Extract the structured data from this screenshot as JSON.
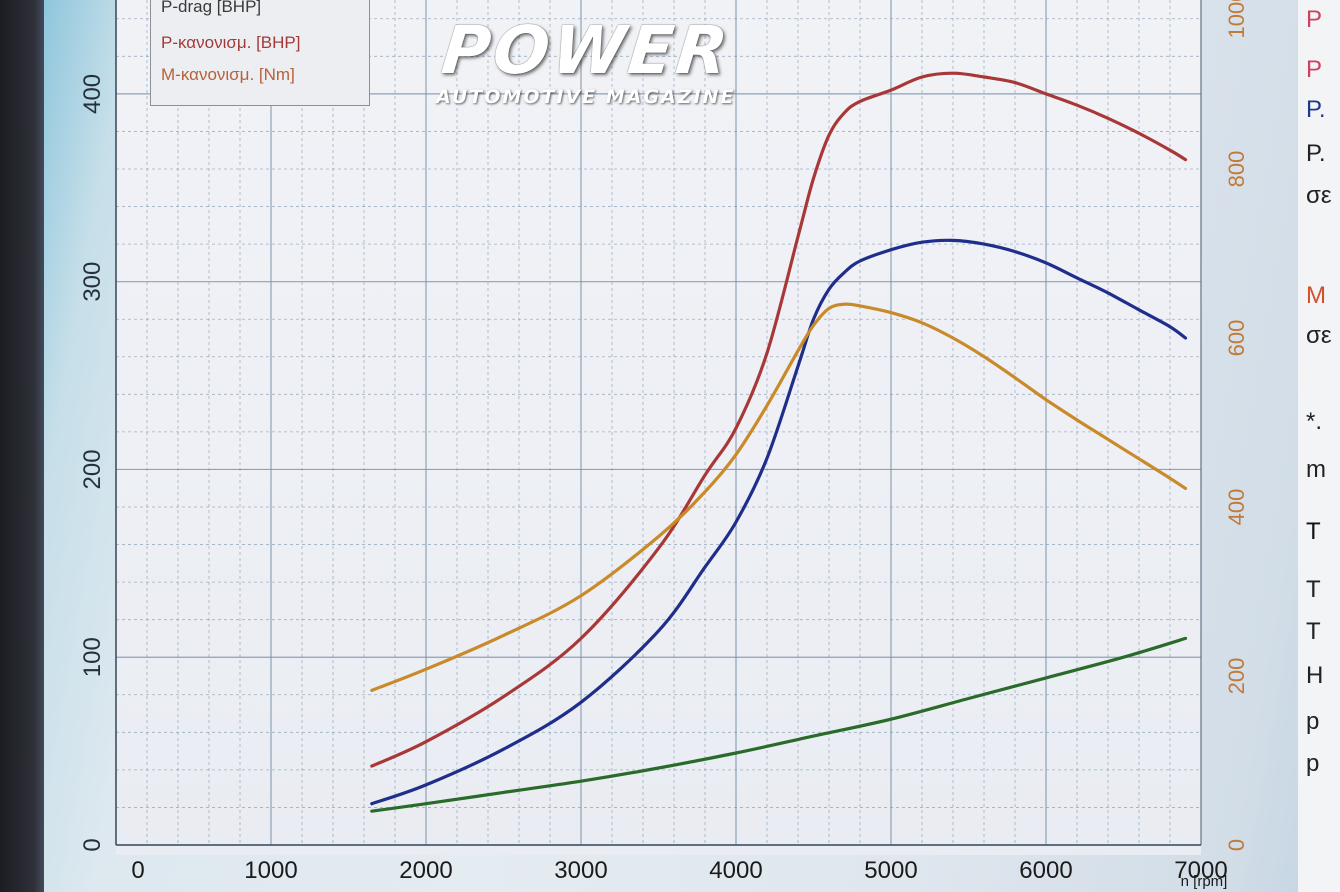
{
  "logo": {
    "main": "POWER",
    "sub": "AUTOMOTIVE MAGAZINE"
  },
  "legend": {
    "items": [
      {
        "label": "P-drag [BHP]",
        "color": "#3a3a3a"
      },
      {
        "label": "P-κανονισμ. [BHP]",
        "color": "#a23a3a"
      },
      {
        "label": "M-κανονισμ. [Nm]",
        "color": "#b8603a"
      }
    ]
  },
  "right_panel": {
    "lines": [
      {
        "text": "P",
        "color": "#d04060"
      },
      {
        "text": "P",
        "color": "#d04060"
      },
      {
        "text": "P.",
        "color": "#1d3a8a"
      },
      {
        "text": "P.",
        "color": "#222222"
      },
      {
        "text": "σε",
        "color": "#222222"
      },
      {
        "text": "M",
        "color": "#d0502a"
      },
      {
        "text": "σε",
        "color": "#222222"
      },
      {
        "text": "*.",
        "color": "#222222"
      },
      {
        "text": "m",
        "color": "#222222"
      },
      {
        "text": "T",
        "color": "#111111"
      },
      {
        "text": "T",
        "color": "#222222"
      },
      {
        "text": "T",
        "color": "#222222"
      },
      {
        "text": "H",
        "color": "#222222"
      },
      {
        "text": "p",
        "color": "#222222"
      },
      {
        "text": "p",
        "color": "#222222"
      }
    ]
  },
  "colors": {
    "grid": "#7f95aa",
    "left_axis_text": "#26303c",
    "right_axis_text": "#c07a3a",
    "x_axis_text": "#1a1a1a"
  },
  "chart_data": {
    "type": "line",
    "xlabel": "n [rpm]",
    "xlim": [
      0,
      7000
    ],
    "x_ticks": [
      0,
      1000,
      2000,
      3000,
      4000,
      5000,
      6000,
      7000
    ],
    "ylim_left": [
      0,
      450
    ],
    "y_ticks_left": [
      0,
      100,
      200,
      300,
      400
    ],
    "ylim_right": [
      0,
      1000
    ],
    "y_ticks_right": [
      0,
      200,
      400,
      600,
      800,
      1000
    ],
    "grid": true,
    "legend_position": "top-left",
    "series": [
      {
        "name": "P-κανονισμ. [BHP]",
        "axis": "left",
        "color": "#a83838",
        "x": [
          1650,
          2000,
          2500,
          3000,
          3500,
          3800,
          4000,
          4200,
          4400,
          4500,
          4600,
          4700,
          4800,
          5000,
          5200,
          5400,
          5600,
          5800,
          6000,
          6200,
          6400,
          6600,
          6800,
          6900
        ],
        "y": [
          42,
          55,
          79,
          110,
          158,
          197,
          222,
          262,
          324,
          355,
          378,
          390,
          396,
          402,
          409,
          411,
          409,
          406,
          400,
          394,
          387,
          379,
          370,
          365
        ]
      },
      {
        "name": "P-drag [BHP]",
        "axis": "left",
        "color": "#1e2e8a",
        "x": [
          1650,
          2000,
          2500,
          3000,
          3500,
          3800,
          4000,
          4200,
          4400,
          4500,
          4600,
          4700,
          4800,
          5000,
          5200,
          5400,
          5600,
          5800,
          6000,
          6200,
          6400,
          6600,
          6800,
          6900
        ],
        "y": [
          22,
          32,
          51,
          76,
          114,
          148,
          172,
          206,
          255,
          280,
          296,
          305,
          311,
          317,
          321,
          322,
          320,
          316,
          310,
          302,
          294,
          285,
          276,
          270
        ]
      },
      {
        "name": "M-κανονισμ. [Nm]",
        "axis": "right",
        "color": "#c98a2a",
        "x": [
          1650,
          2000,
          2500,
          3000,
          3500,
          3800,
          4000,
          4200,
          4400,
          4500,
          4600,
          4700,
          4800,
          5000,
          5200,
          5400,
          5600,
          5800,
          6000,
          6200,
          6400,
          6600,
          6800,
          6900
        ],
        "y": [
          183,
          208,
          248,
          295,
          365,
          418,
          462,
          520,
          585,
          615,
          635,
          640,
          638,
          630,
          618,
          600,
          578,
          553,
          527,
          503,
          480,
          457,
          434,
          422
        ]
      },
      {
        "axis": "left",
        "color": "#2a6a2a",
        "x": [
          1650,
          2000,
          2500,
          3000,
          3500,
          4000,
          4500,
          5000,
          5500,
          6000,
          6500,
          6900
        ],
        "y": [
          18,
          22,
          28,
          34,
          41,
          49,
          58,
          67,
          78,
          89,
          100,
          110
        ]
      }
    ]
  }
}
